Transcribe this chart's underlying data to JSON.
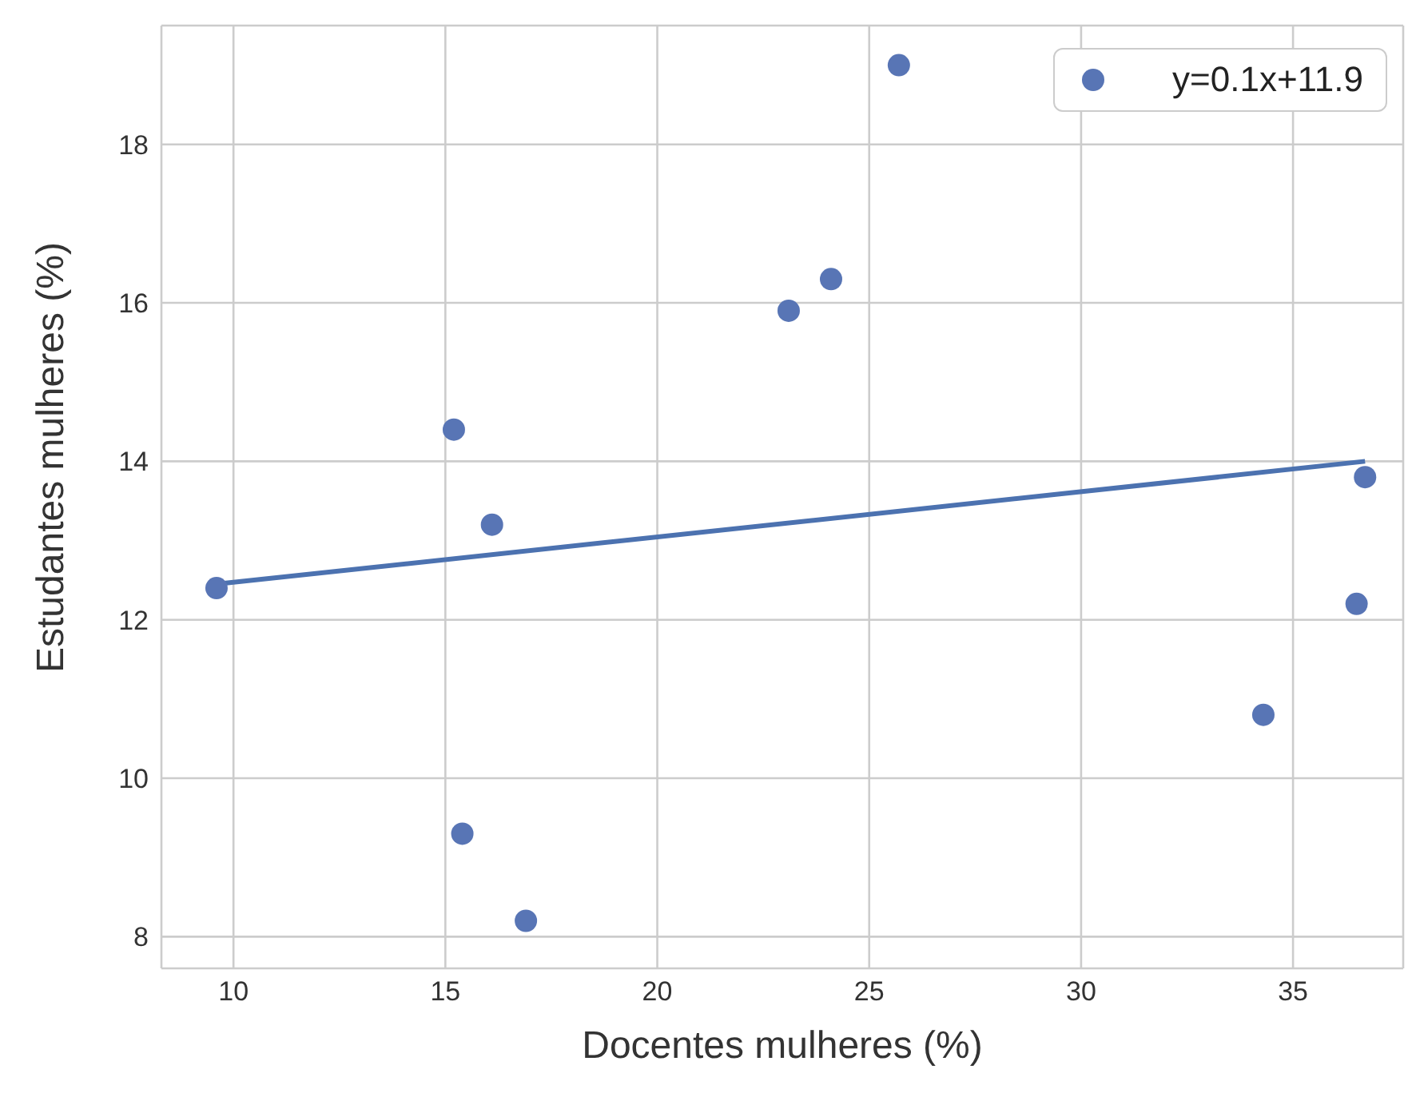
{
  "chart_data": {
    "type": "scatter",
    "xlabel": "Docentes mulheres (%)",
    "ylabel": "Estudantes mulheres (%)",
    "xlim": [
      8.3,
      37.6
    ],
    "ylim": [
      7.6,
      19.5
    ],
    "xticks": [
      10,
      15,
      20,
      25,
      30,
      35
    ],
    "yticks": [
      8,
      10,
      12,
      14,
      16,
      18
    ],
    "grid": true,
    "legend": "top right",
    "marker": "circle",
    "series": [
      {
        "name": "y=0.1x+11.9",
        "color": "#5875b5",
        "x": [
          9.6,
          15.2,
          16.1,
          15.4,
          16.9,
          23.1,
          24.1,
          25.7,
          34.3,
          36.5,
          36.7
        ],
        "values": [
          12.4,
          14.4,
          13.2,
          9.3,
          8.2,
          15.9,
          16.3,
          19.0,
          10.8,
          12.2,
          13.8
        ]
      },
      {
        "type": "line",
        "color": "#4c72b0",
        "line_style": "solid",
        "marker": "none",
        "x": [
          9.6,
          36.7
        ],
        "values": [
          12.45,
          14.0
        ]
      }
    ]
  }
}
